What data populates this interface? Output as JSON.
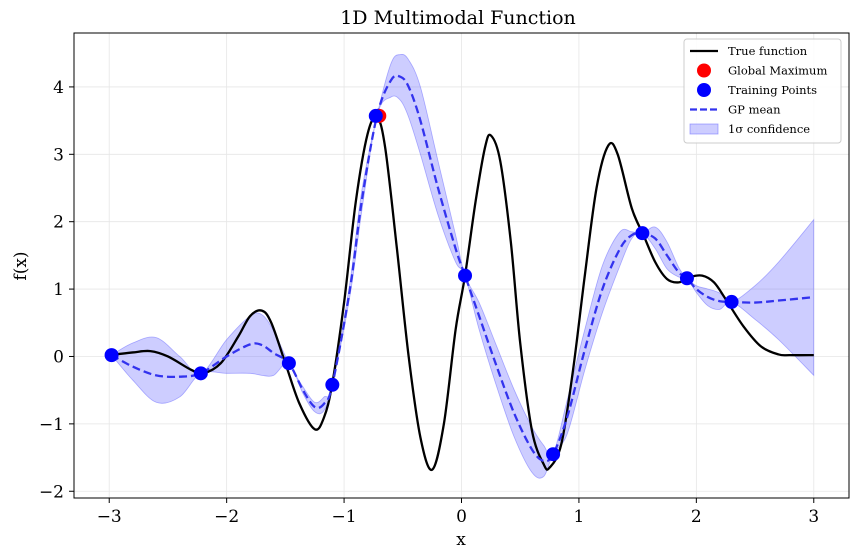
{
  "chart_data": {
    "type": "line",
    "title": "1D Multimodal Function",
    "xlabel": "x",
    "ylabel": "f(x)",
    "xlim": [
      -3.3,
      3.3
    ],
    "ylim": [
      -2.1,
      4.8
    ],
    "xticks": [
      -3,
      -2,
      -1,
      0,
      1,
      2,
      3
    ],
    "yticks": [
      -2,
      -1,
      0,
      1,
      2,
      3,
      4
    ],
    "grid": true,
    "legend_position": "top-right",
    "legend": [
      {
        "label": "True function",
        "kind": "line",
        "color": "#000000"
      },
      {
        "label": "Global Maximum",
        "kind": "marker",
        "color": "#ff0000"
      },
      {
        "label": "Training Points",
        "kind": "marker",
        "color": "#0000ff"
      },
      {
        "label": "GP mean",
        "kind": "dashed",
        "color": "#3333ee"
      },
      {
        "label": "1σ confidence",
        "kind": "patch",
        "color": "#6666ff"
      }
    ],
    "series": [
      {
        "name": "True function",
        "style": "solid",
        "color": "#000000",
        "x": [
          -3.0,
          -2.8,
          -2.65,
          -2.5,
          -2.3,
          -2.2,
          -2.05,
          -1.9,
          -1.8,
          -1.7,
          -1.62,
          -1.5,
          -1.38,
          -1.25,
          -1.17,
          -1.1,
          -1.0,
          -0.9,
          -0.8,
          -0.72,
          -0.65,
          -0.55,
          -0.45,
          -0.35,
          -0.25,
          -0.15,
          -0.05,
          0.03,
          0.12,
          0.2,
          0.25,
          0.33,
          0.42,
          0.5,
          0.6,
          0.7,
          0.75,
          0.85,
          0.95,
          1.05,
          1.15,
          1.25,
          1.33,
          1.45,
          1.55,
          1.65,
          1.75,
          1.85,
          1.95,
          2.05,
          2.15,
          2.25,
          2.4,
          2.55,
          2.7,
          2.8,
          3.0
        ],
        "y": [
          0.02,
          0.06,
          0.08,
          0.0,
          -0.2,
          -0.25,
          -0.1,
          0.3,
          0.6,
          0.68,
          0.5,
          -0.1,
          -0.7,
          -1.08,
          -0.9,
          -0.4,
          0.8,
          2.3,
          3.3,
          3.55,
          3.1,
          1.6,
          0.0,
          -1.2,
          -1.68,
          -1.0,
          0.4,
          1.2,
          2.3,
          3.1,
          3.28,
          2.9,
          1.7,
          0.2,
          -1.1,
          -1.6,
          -1.65,
          -1.3,
          -0.2,
          1.2,
          2.5,
          3.13,
          3.0,
          2.2,
          1.8,
          1.4,
          1.15,
          1.1,
          1.18,
          1.2,
          1.1,
          0.85,
          0.45,
          0.15,
          0.03,
          0.02,
          0.02
        ]
      },
      {
        "name": "GP mean",
        "style": "dashed",
        "color": "#3333ee",
        "x": [
          -2.98,
          -2.8,
          -2.6,
          -2.4,
          -2.22,
          -2.0,
          -1.8,
          -1.7,
          -1.6,
          -1.47,
          -1.35,
          -1.25,
          -1.17,
          -1.1,
          -0.95,
          -0.85,
          -0.72,
          -0.6,
          -0.52,
          -0.45,
          -0.35,
          -0.2,
          -0.05,
          0.03,
          0.15,
          0.3,
          0.45,
          0.6,
          0.7,
          0.78,
          0.9,
          1.05,
          1.2,
          1.35,
          1.45,
          1.54,
          1.65,
          1.75,
          1.85,
          1.92,
          2.0,
          2.1,
          2.2,
          2.3,
          2.5,
          2.7,
          3.0
        ],
        "y": [
          0.02,
          -0.15,
          -0.28,
          -0.3,
          -0.25,
          0.0,
          0.18,
          0.17,
          0.05,
          -0.1,
          -0.5,
          -0.75,
          -0.7,
          -0.42,
          1.0,
          2.3,
          3.57,
          4.1,
          4.15,
          4.0,
          3.5,
          2.5,
          1.6,
          1.2,
          0.6,
          -0.15,
          -0.85,
          -1.38,
          -1.55,
          -1.45,
          -0.9,
          0.1,
          1.0,
          1.6,
          1.8,
          1.83,
          1.75,
          1.5,
          1.25,
          1.16,
          1.0,
          0.88,
          0.82,
          0.81,
          0.8,
          0.83,
          0.88
        ]
      }
    ],
    "confidence_band": {
      "name": "1σ confidence",
      "color": "#6666ff",
      "x": [
        -2.98,
        -2.8,
        -2.6,
        -2.4,
        -2.22,
        -2.0,
        -1.8,
        -1.7,
        -1.6,
        -1.47,
        -1.35,
        -1.25,
        -1.17,
        -1.1,
        -0.95,
        -0.85,
        -0.72,
        -0.6,
        -0.52,
        -0.45,
        -0.35,
        -0.2,
        -0.05,
        0.03,
        0.15,
        0.3,
        0.45,
        0.6,
        0.7,
        0.78,
        0.9,
        1.05,
        1.2,
        1.35,
        1.45,
        1.54,
        1.65,
        1.75,
        1.85,
        1.92,
        2.0,
        2.1,
        2.2,
        2.3,
        2.5,
        2.7,
        3.0
      ],
      "lower": [
        0.02,
        -0.35,
        -0.68,
        -0.6,
        -0.25,
        -0.25,
        -0.25,
        -0.28,
        -0.28,
        -0.1,
        -0.55,
        -0.82,
        -0.8,
        -0.42,
        0.9,
        2.15,
        3.57,
        3.85,
        3.8,
        3.55,
        3.0,
        2.1,
        1.4,
        1.2,
        0.4,
        -0.45,
        -1.2,
        -1.72,
        -1.78,
        -1.45,
        -1.15,
        -0.2,
        0.65,
        1.35,
        1.75,
        1.83,
        1.6,
        1.3,
        1.18,
        1.16,
        0.95,
        0.75,
        0.7,
        0.81,
        0.55,
        0.25,
        -0.28
      ],
      "upper": [
        0.02,
        0.2,
        0.28,
        0.0,
        -0.25,
        0.25,
        0.6,
        0.62,
        0.38,
        -0.1,
        -0.45,
        -0.68,
        -0.6,
        -0.42,
        1.1,
        2.45,
        3.57,
        4.35,
        4.48,
        4.4,
        4.0,
        2.9,
        1.8,
        1.2,
        0.8,
        0.15,
        -0.5,
        -1.05,
        -1.32,
        -1.45,
        -0.65,
        0.4,
        1.35,
        1.85,
        1.85,
        1.83,
        1.92,
        1.7,
        1.32,
        1.16,
        1.05,
        1.0,
        0.94,
        0.81,
        1.05,
        1.4,
        2.03
      ]
    },
    "training_points": {
      "name": "Training Points",
      "color": "#0000ff",
      "x": [
        -2.98,
        -2.22,
        -1.47,
        -1.1,
        -0.73,
        0.03,
        0.78,
        1.54,
        1.92,
        2.3
      ],
      "y": [
        0.02,
        -0.25,
        -0.1,
        -0.42,
        3.57,
        1.2,
        -1.45,
        1.83,
        1.16,
        0.81
      ]
    },
    "global_maximum": {
      "name": "Global Maximum",
      "color": "#ff0000",
      "x": -0.7,
      "y": 3.57
    }
  }
}
